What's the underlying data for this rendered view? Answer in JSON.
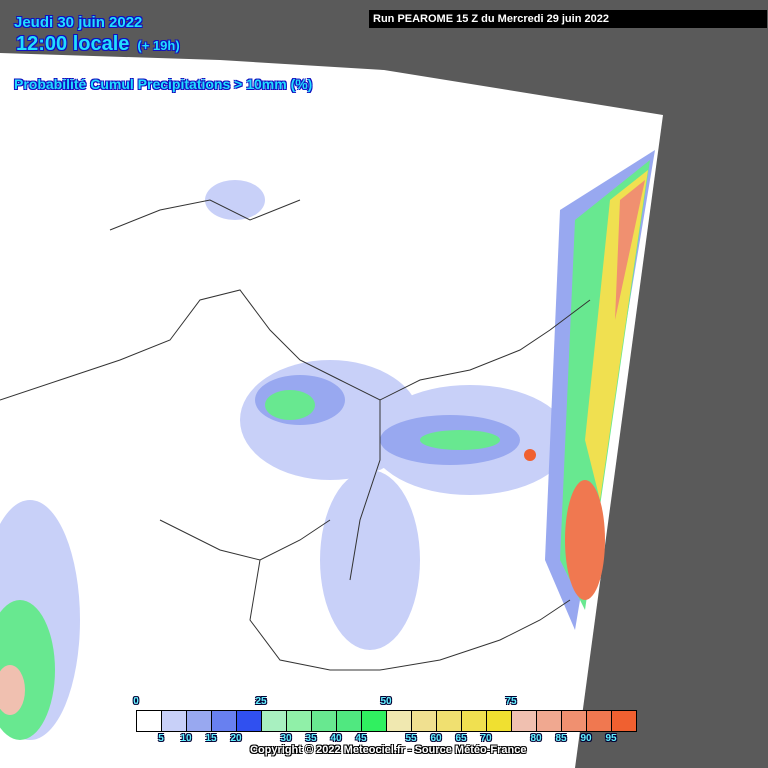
{
  "header": {
    "date": "Jeudi 30 juin 2022",
    "time": "12:00 locale",
    "lead": "(+ 19h)",
    "title": "Probabilité Cumul Precipitations > 10mm (%)",
    "run": "Run PEAROME 15 Z du Mercredi 29 juin 2022"
  },
  "legend": {
    "colors": [
      "#ffffff",
      "#c8d0f8",
      "#98a8f0",
      "#6880f0",
      "#3050f0",
      "#a8f0c0",
      "#90f0a8",
      "#68e890",
      "#50e880",
      "#30f060",
      "#f0e8b0",
      "#f0e090",
      "#f0e070",
      "#f0e050",
      "#f0e030",
      "#f0c0b0",
      "#f0a890",
      "#f09070",
      "#f07850",
      "#f06030"
    ],
    "top_labels": [
      "0",
      "25",
      "50",
      "75"
    ],
    "bottom_labels": [
      "5",
      "10",
      "15",
      "20",
      "30",
      "35",
      "40",
      "45",
      "55",
      "60",
      "65",
      "70",
      "80",
      "85",
      "90",
      "95"
    ]
  },
  "copyright": "Copyright © 2022 Meteociel.fr - Source Météo-France"
}
